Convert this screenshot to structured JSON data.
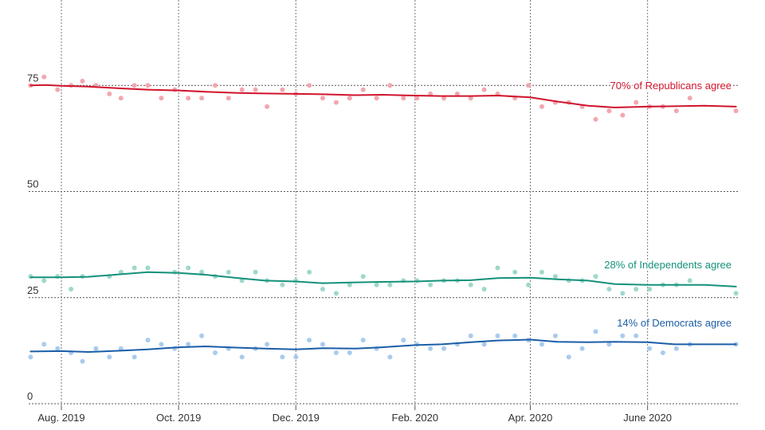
{
  "chart_data": {
    "type": "line",
    "title": "",
    "xlabel": "",
    "ylabel": "",
    "ylim": [
      0,
      86
    ],
    "xlim": [
      "2019-07-15",
      "2020-07-18"
    ],
    "y_ticks": [
      0,
      25,
      50,
      75
    ],
    "x_ticks": [
      {
        "date": "2019-08-01",
        "label": "Aug. 2019"
      },
      {
        "date": "2019-10-01",
        "label": "Oct. 2019"
      },
      {
        "date": "2019-12-01",
        "label": "Dec. 2019"
      },
      {
        "date": "2020-02-01",
        "label": "Feb. 2020"
      },
      {
        "date": "2020-04-01",
        "label": "Apr. 2020"
      },
      {
        "date": "2020-06-01",
        "label": "June 2020"
      }
    ],
    "grid": true,
    "series": [
      {
        "name": "Republicans",
        "label": "70% of Republicans agree",
        "color": "#d0142c",
        "point_color": "#f2a7b0",
        "trend": [
          [
            "2019-07-16",
            75.0
          ],
          [
            "2019-07-24",
            75.1
          ],
          [
            "2019-08-01",
            74.9
          ],
          [
            "2019-08-15",
            74.7
          ],
          [
            "2019-09-01",
            74.3
          ],
          [
            "2019-09-15",
            74.0
          ],
          [
            "2019-10-01",
            73.8
          ],
          [
            "2019-10-15",
            73.5
          ],
          [
            "2019-11-01",
            73.2
          ],
          [
            "2019-11-15",
            73.1
          ],
          [
            "2019-12-01",
            73.0
          ],
          [
            "2019-12-15",
            72.9
          ],
          [
            "2020-01-01",
            72.7
          ],
          [
            "2020-01-15",
            72.8
          ],
          [
            "2020-02-01",
            72.6
          ],
          [
            "2020-02-15",
            72.5
          ],
          [
            "2020-03-01",
            72.5
          ],
          [
            "2020-03-15",
            72.6
          ],
          [
            "2020-04-01",
            72.2
          ],
          [
            "2020-04-15",
            71.2
          ],
          [
            "2020-05-01",
            70.2
          ],
          [
            "2020-05-15",
            69.8
          ],
          [
            "2020-06-01",
            70.0
          ],
          [
            "2020-06-15",
            70.1
          ],
          [
            "2020-07-01",
            70.2
          ],
          [
            "2020-07-17",
            70.0
          ]
        ],
        "points": [
          [
            "2019-07-16",
            75
          ],
          [
            "2019-07-23",
            77
          ],
          [
            "2019-07-30",
            74
          ],
          [
            "2019-08-06",
            75
          ],
          [
            "2019-08-12",
            76
          ],
          [
            "2019-08-19",
            75
          ],
          [
            "2019-08-26",
            73
          ],
          [
            "2019-09-01",
            72
          ],
          [
            "2019-09-08",
            75
          ],
          [
            "2019-09-15",
            75
          ],
          [
            "2019-09-22",
            72
          ],
          [
            "2019-09-29",
            74
          ],
          [
            "2019-10-06",
            72
          ],
          [
            "2019-10-13",
            72
          ],
          [
            "2019-10-20",
            75
          ],
          [
            "2019-10-27",
            72
          ],
          [
            "2019-11-03",
            74
          ],
          [
            "2019-11-10",
            74
          ],
          [
            "2019-11-16",
            70
          ],
          [
            "2019-11-24",
            74
          ],
          [
            "2019-12-01",
            73
          ],
          [
            "2019-12-08",
            75
          ],
          [
            "2019-12-15",
            72
          ],
          [
            "2019-12-22",
            71
          ],
          [
            "2019-12-29",
            72
          ],
          [
            "2020-01-05",
            74
          ],
          [
            "2020-01-12",
            72
          ],
          [
            "2020-01-19",
            75
          ],
          [
            "2020-01-26",
            72
          ],
          [
            "2020-02-02",
            72
          ],
          [
            "2020-02-09",
            73
          ],
          [
            "2020-02-16",
            72
          ],
          [
            "2020-02-23",
            73
          ],
          [
            "2020-03-01",
            72
          ],
          [
            "2020-03-08",
            74
          ],
          [
            "2020-03-15",
            73
          ],
          [
            "2020-03-24",
            72
          ],
          [
            "2020-03-31",
            75
          ],
          [
            "2020-04-07",
            70
          ],
          [
            "2020-04-14",
            71
          ],
          [
            "2020-04-21",
            71
          ],
          [
            "2020-04-28",
            70
          ],
          [
            "2020-05-05",
            67
          ],
          [
            "2020-05-12",
            69
          ],
          [
            "2020-05-19",
            68
          ],
          [
            "2020-05-26",
            71
          ],
          [
            "2020-06-02",
            70
          ],
          [
            "2020-06-09",
            70
          ],
          [
            "2020-06-16",
            69
          ],
          [
            "2020-06-23",
            72
          ],
          [
            "2020-07-17",
            69
          ]
        ]
      },
      {
        "name": "Independents",
        "label": "28% of Independents agree",
        "color": "#14917a",
        "point_color": "#9fd8cc",
        "trend": [
          [
            "2019-07-16",
            29.8
          ],
          [
            "2019-08-01",
            29.8
          ],
          [
            "2019-08-15",
            29.9
          ],
          [
            "2019-09-01",
            30.5
          ],
          [
            "2019-09-15",
            31.0
          ],
          [
            "2019-10-01",
            30.8
          ],
          [
            "2019-10-15",
            30.4
          ],
          [
            "2019-11-01",
            29.6
          ],
          [
            "2019-11-15",
            29.0
          ],
          [
            "2019-12-01",
            28.8
          ],
          [
            "2019-12-15",
            28.4
          ],
          [
            "2020-01-01",
            28.6
          ],
          [
            "2020-01-15",
            28.7
          ],
          [
            "2020-02-01",
            28.8
          ],
          [
            "2020-02-15",
            29.0
          ],
          [
            "2020-03-01",
            29.1
          ],
          [
            "2020-03-15",
            29.6
          ],
          [
            "2020-04-01",
            29.7
          ],
          [
            "2020-04-15",
            29.3
          ],
          [
            "2020-05-01",
            29.0
          ],
          [
            "2020-05-15",
            28.2
          ],
          [
            "2020-06-01",
            28.0
          ],
          [
            "2020-06-15",
            28.0
          ],
          [
            "2020-07-01",
            28.0
          ],
          [
            "2020-07-17",
            27.6
          ]
        ],
        "points": [
          [
            "2019-07-16",
            30
          ],
          [
            "2019-07-23",
            29
          ],
          [
            "2019-07-30",
            30
          ],
          [
            "2019-08-06",
            27
          ],
          [
            "2019-08-12",
            30
          ],
          [
            "2019-08-26",
            30
          ],
          [
            "2019-09-01",
            31
          ],
          [
            "2019-09-08",
            32
          ],
          [
            "2019-09-15",
            32
          ],
          [
            "2019-09-29",
            31
          ],
          [
            "2019-10-06",
            32
          ],
          [
            "2019-10-13",
            31
          ],
          [
            "2019-10-20",
            30
          ],
          [
            "2019-10-27",
            31
          ],
          [
            "2019-11-03",
            29
          ],
          [
            "2019-11-10",
            31
          ],
          [
            "2019-11-16",
            29
          ],
          [
            "2019-11-24",
            28
          ],
          [
            "2019-12-01",
            29
          ],
          [
            "2019-12-08",
            31
          ],
          [
            "2019-12-15",
            27
          ],
          [
            "2019-12-22",
            26
          ],
          [
            "2019-12-29",
            28
          ],
          [
            "2020-01-05",
            30
          ],
          [
            "2020-01-12",
            28
          ],
          [
            "2020-01-19",
            28
          ],
          [
            "2020-01-26",
            29
          ],
          [
            "2020-02-02",
            29
          ],
          [
            "2020-02-09",
            28
          ],
          [
            "2020-02-16",
            29
          ],
          [
            "2020-02-23",
            29
          ],
          [
            "2020-03-01",
            28
          ],
          [
            "2020-03-08",
            27
          ],
          [
            "2020-03-15",
            32
          ],
          [
            "2020-03-24",
            31
          ],
          [
            "2020-03-31",
            28
          ],
          [
            "2020-04-07",
            31
          ],
          [
            "2020-04-14",
            30
          ],
          [
            "2020-04-21",
            29
          ],
          [
            "2020-04-28",
            29
          ],
          [
            "2020-05-05",
            30
          ],
          [
            "2020-05-12",
            27
          ],
          [
            "2020-05-19",
            26
          ],
          [
            "2020-05-26",
            27
          ],
          [
            "2020-06-02",
            27
          ],
          [
            "2020-06-09",
            28
          ],
          [
            "2020-06-16",
            28
          ],
          [
            "2020-06-23",
            29
          ],
          [
            "2020-07-17",
            26
          ]
        ]
      },
      {
        "name": "Democrats",
        "label": "14% of Democrats agree",
        "color": "#1b5ea7",
        "point_color": "#a9cbee",
        "trend": [
          [
            "2019-07-16",
            12.3
          ],
          [
            "2019-08-01",
            12.4
          ],
          [
            "2019-08-15",
            12.2
          ],
          [
            "2019-09-01",
            12.5
          ],
          [
            "2019-09-15",
            12.8
          ],
          [
            "2019-10-01",
            13.3
          ],
          [
            "2019-10-15",
            13.5
          ],
          [
            "2019-11-01",
            13.2
          ],
          [
            "2019-11-15",
            13.0
          ],
          [
            "2019-12-01",
            12.8
          ],
          [
            "2019-12-15",
            13.1
          ],
          [
            "2020-01-01",
            13.0
          ],
          [
            "2020-01-15",
            13.3
          ],
          [
            "2020-02-01",
            13.8
          ],
          [
            "2020-02-15",
            14.0
          ],
          [
            "2020-03-01",
            14.5
          ],
          [
            "2020-03-15",
            14.9
          ],
          [
            "2020-04-01",
            15.1
          ],
          [
            "2020-04-15",
            14.6
          ],
          [
            "2020-05-01",
            14.5
          ],
          [
            "2020-05-15",
            14.6
          ],
          [
            "2020-06-01",
            14.5
          ],
          [
            "2020-06-15",
            14.0
          ],
          [
            "2020-07-01",
            14.0
          ],
          [
            "2020-07-17",
            14.0
          ]
        ],
        "points": [
          [
            "2019-07-16",
            11
          ],
          [
            "2019-07-23",
            14
          ],
          [
            "2019-07-30",
            13
          ],
          [
            "2019-08-06",
            12
          ],
          [
            "2019-08-12",
            10
          ],
          [
            "2019-08-19",
            13
          ],
          [
            "2019-08-26",
            11
          ],
          [
            "2019-09-01",
            13
          ],
          [
            "2019-09-08",
            11
          ],
          [
            "2019-09-15",
            15
          ],
          [
            "2019-09-22",
            14
          ],
          [
            "2019-09-29",
            13
          ],
          [
            "2019-10-06",
            14
          ],
          [
            "2019-10-13",
            16
          ],
          [
            "2019-10-20",
            12
          ],
          [
            "2019-10-27",
            13
          ],
          [
            "2019-11-03",
            11
          ],
          [
            "2019-11-10",
            13
          ],
          [
            "2019-11-16",
            14
          ],
          [
            "2019-11-24",
            11
          ],
          [
            "2019-12-01",
            11
          ],
          [
            "2019-12-08",
            15
          ],
          [
            "2019-12-15",
            14
          ],
          [
            "2019-12-22",
            12
          ],
          [
            "2019-12-29",
            12
          ],
          [
            "2020-01-05",
            15
          ],
          [
            "2020-01-12",
            13
          ],
          [
            "2020-01-19",
            11
          ],
          [
            "2020-01-26",
            15
          ],
          [
            "2020-02-02",
            14
          ],
          [
            "2020-02-09",
            13
          ],
          [
            "2020-02-16",
            13
          ],
          [
            "2020-02-23",
            14
          ],
          [
            "2020-03-01",
            16
          ],
          [
            "2020-03-08",
            14
          ],
          [
            "2020-03-15",
            16
          ],
          [
            "2020-03-24",
            16
          ],
          [
            "2020-03-31",
            15
          ],
          [
            "2020-04-07",
            14
          ],
          [
            "2020-04-14",
            16
          ],
          [
            "2020-04-21",
            11
          ],
          [
            "2020-04-28",
            13
          ],
          [
            "2020-05-05",
            17
          ],
          [
            "2020-05-12",
            14
          ],
          [
            "2020-05-19",
            16
          ],
          [
            "2020-05-26",
            16
          ],
          [
            "2020-06-02",
            13
          ],
          [
            "2020-06-09",
            12
          ],
          [
            "2020-06-16",
            13
          ],
          [
            "2020-06-23",
            14
          ],
          [
            "2020-07-17",
            14
          ]
        ]
      }
    ]
  }
}
